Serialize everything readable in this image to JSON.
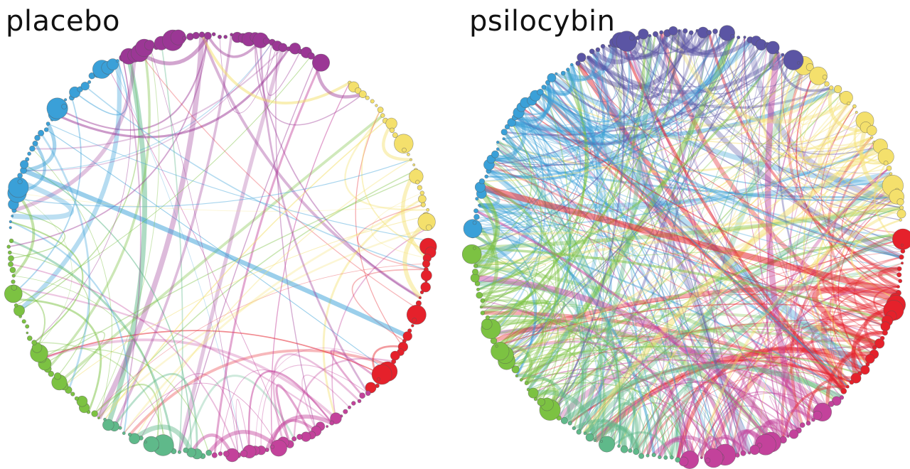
{
  "panels": [
    {
      "key": "left",
      "title": "placebo",
      "edge_density": "sparse"
    },
    {
      "key": "right",
      "title": "psilocybin",
      "edge_density": "dense"
    }
  ],
  "module_colors": [
    {
      "name": "purple",
      "hex": "#9b3795"
    },
    {
      "name": "yellow",
      "hex": "#f4e06c"
    },
    {
      "name": "red",
      "hex": "#e5212b"
    },
    {
      "name": "magenta",
      "hex": "#c3429b"
    },
    {
      "name": "teal-green",
      "hex": "#5fb98a"
    },
    {
      "name": "green",
      "hex": "#7cc242"
    },
    {
      "name": "blue",
      "hex": "#3aa0d8"
    },
    {
      "name": "indigo",
      "hex": "#5b55a4"
    }
  ]
}
